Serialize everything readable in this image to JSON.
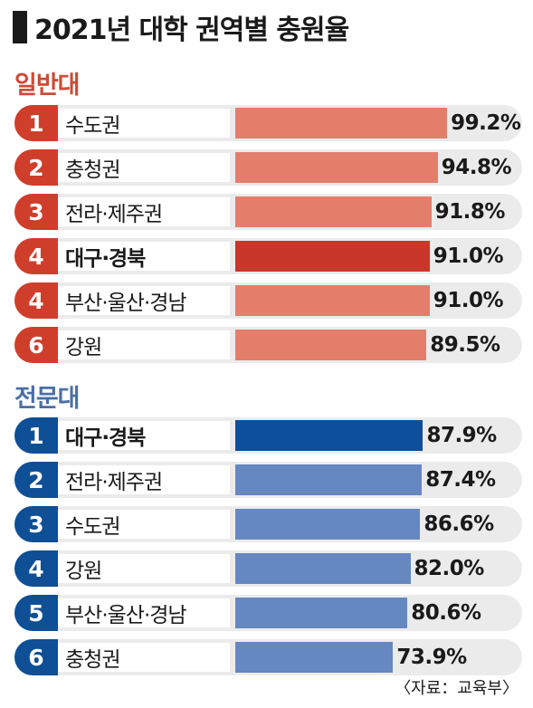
{
  "title": "2021년 대학 권역별 충원율",
  "source": "〈자료：교육부〉",
  "colors": {
    "general_bar": "#e37e6b",
    "general_highlight_bar": "#c9362a",
    "general_badge": "#cf3e2b",
    "college_bar": "#6688c0",
    "college_highlight_bar": "#0d4f9a",
    "college_badge": "#0e4f95",
    "row_bg": "#ebebeb"
  },
  "chart_data": {
    "type": "bar",
    "orientation": "horizontal",
    "value_unit": "%",
    "xlim": [
      0,
      100
    ],
    "groups": [
      {
        "name": "일반대",
        "items": [
          {
            "rank": "1",
            "category": "수도권",
            "value": 99.2,
            "value_label": "99.2%",
            "highlight": false
          },
          {
            "rank": "2",
            "category": "충청권",
            "value": 94.8,
            "value_label": "94.8%",
            "highlight": false
          },
          {
            "rank": "3",
            "category": "전라·제주권",
            "value": 91.8,
            "value_label": "91.8%",
            "highlight": false
          },
          {
            "rank": "4",
            "category": "대구·경북",
            "value": 91.0,
            "value_label": "91.0%",
            "highlight": true
          },
          {
            "rank": "4",
            "category": "부산·울산·경남",
            "value": 91.0,
            "value_label": "91.0%",
            "highlight": false
          },
          {
            "rank": "6",
            "category": "강원",
            "value": 89.5,
            "value_label": "89.5%",
            "highlight": false
          }
        ]
      },
      {
        "name": "전문대",
        "items": [
          {
            "rank": "1",
            "category": "대구·경북",
            "value": 87.9,
            "value_label": "87.9%",
            "highlight": true
          },
          {
            "rank": "2",
            "category": "전라·제주권",
            "value": 87.4,
            "value_label": "87.4%",
            "highlight": false
          },
          {
            "rank": "3",
            "category": "수도권",
            "value": 86.6,
            "value_label": "86.6%",
            "highlight": false
          },
          {
            "rank": "4",
            "category": "강원",
            "value": 82.0,
            "value_label": "82.0%",
            "highlight": false
          },
          {
            "rank": "5",
            "category": "부산·울산·경남",
            "value": 80.6,
            "value_label": "80.6%",
            "highlight": false
          },
          {
            "rank": "6",
            "category": "충청권",
            "value": 73.9,
            "value_label": "73.9%",
            "highlight": false
          }
        ]
      }
    ]
  }
}
